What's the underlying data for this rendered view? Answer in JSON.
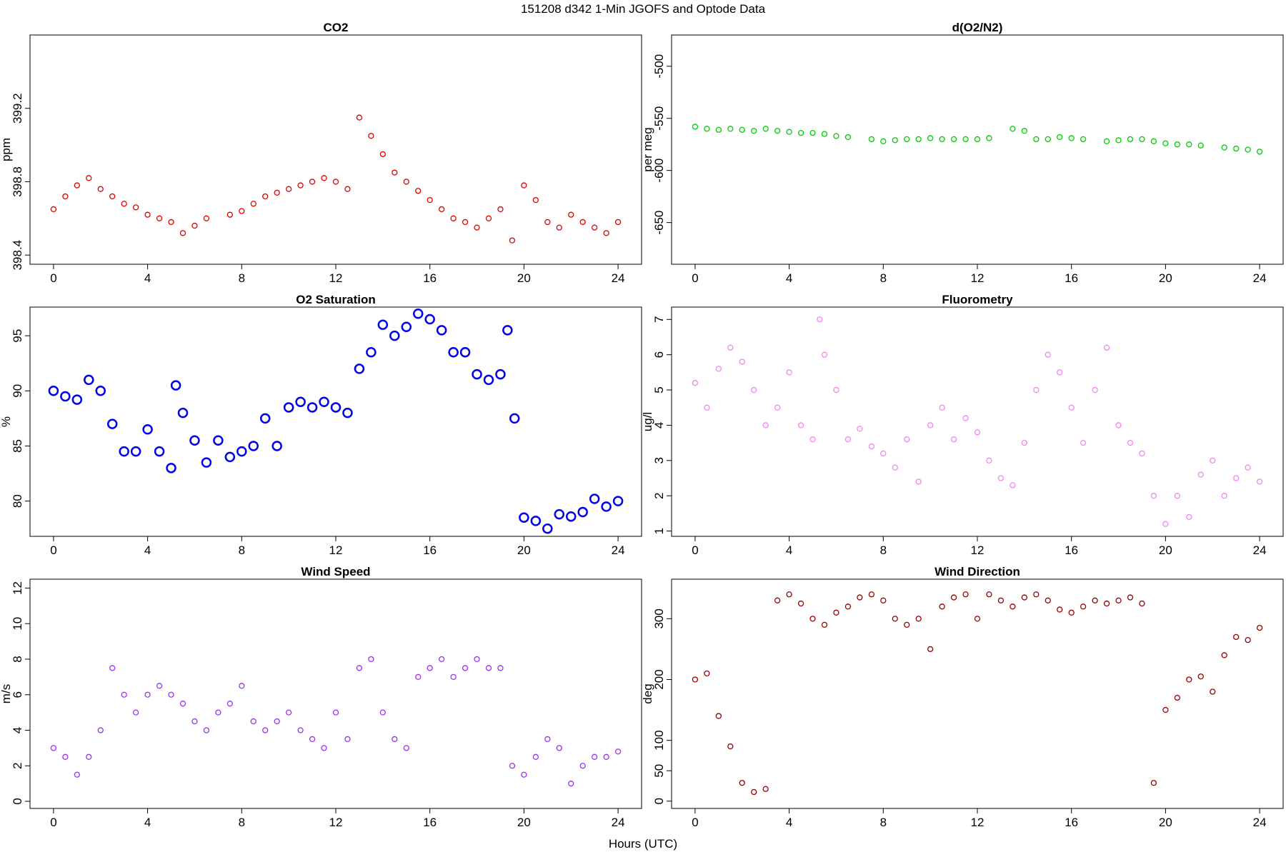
{
  "figure": {
    "title": "151208   d342   1-Min  JGOFS and Optode Data",
    "xlabel": "Hours (UTC)"
  },
  "chart_data": [
    {
      "id": "co2",
      "type": "scatter",
      "title": "CO2",
      "ylabel": "ppm",
      "color": "#dd0000",
      "xlim": [
        -1,
        25
      ],
      "ylim": [
        398.35,
        399.6
      ],
      "xticks": [
        0,
        4,
        8,
        12,
        16,
        20,
        24
      ],
      "yticks": [
        398.4,
        398.8,
        399.2
      ],
      "yticklabels": [
        "398.4",
        "398.8",
        "399.2"
      ],
      "x": [
        0,
        0.5,
        1.0,
        1.5,
        2.0,
        2.5,
        3.0,
        3.5,
        4.0,
        4.5,
        5.0,
        5.5,
        6.0,
        6.5,
        7.5,
        8.0,
        8.5,
        9.0,
        9.5,
        10.0,
        10.5,
        11.0,
        11.5,
        12.0,
        12.5,
        13.0,
        13.5,
        14.0,
        14.5,
        15.0,
        15.5,
        16.0,
        16.5,
        17.0,
        17.5,
        18.0,
        18.5,
        19.0,
        19.5,
        20.0,
        20.5,
        21.0,
        21.5,
        22.0,
        22.5,
        23.0,
        23.5,
        24.0
      ],
      "values": [
        398.65,
        398.72,
        398.78,
        398.82,
        398.76,
        398.72,
        398.68,
        398.66,
        398.62,
        398.6,
        398.58,
        398.52,
        398.56,
        398.6,
        398.62,
        398.64,
        398.68,
        398.72,
        398.74,
        398.76,
        398.78,
        398.8,
        398.82,
        398.8,
        398.76,
        399.15,
        399.05,
        398.95,
        398.85,
        398.8,
        398.75,
        398.7,
        398.65,
        398.6,
        398.58,
        398.55,
        398.6,
        398.65,
        398.48,
        398.78,
        398.7,
        398.58,
        398.55,
        398.62,
        398.58,
        398.55,
        398.52,
        398.58
      ]
    },
    {
      "id": "do2n2",
      "type": "scatter",
      "title": "d(O2/N2)",
      "ylabel": "per meg",
      "color": "#00cc00",
      "xlim": [
        -1,
        25
      ],
      "ylim": [
        -690,
        -470
      ],
      "xticks": [
        0,
        4,
        8,
        12,
        16,
        20,
        24
      ],
      "yticks": [
        -650,
        -600,
        -550,
        -500
      ],
      "yticklabels": [
        "-650",
        "-600",
        "-550",
        "-500"
      ],
      "x": [
        0,
        0.5,
        1.0,
        1.5,
        2.0,
        2.5,
        3.0,
        3.5,
        4.0,
        4.5,
        5.0,
        5.5,
        6.0,
        6.5,
        7.5,
        8.0,
        8.5,
        9.0,
        9.5,
        10.0,
        10.5,
        11.0,
        11.5,
        12.0,
        12.5,
        13.5,
        14.0,
        14.5,
        15.0,
        15.5,
        16.0,
        16.5,
        17.5,
        18.0,
        18.5,
        19.0,
        19.5,
        20.0,
        20.5,
        21.0,
        21.5,
        22.5,
        23.0,
        23.5,
        24.0
      ],
      "values": [
        -558,
        -560,
        -561,
        -560,
        -561,
        -562,
        -560,
        -562,
        -563,
        -564,
        -564,
        -565,
        -567,
        -568,
        -570,
        -572,
        -571,
        -570,
        -570,
        -569,
        -570,
        -570,
        -570,
        -570,
        -569,
        -560,
        -562,
        -570,
        -570,
        -568,
        -569,
        -570,
        -572,
        -571,
        -570,
        -570,
        -572,
        -574,
        -575,
        -575,
        -576,
        -578,
        -579,
        -580,
        -582
      ]
    },
    {
      "id": "o2sat",
      "type": "line",
      "title": "O2 Saturation",
      "ylabel": "%",
      "color": "#0000ee",
      "xlim": [
        -1,
        25
      ],
      "ylim": [
        76.8,
        97.6
      ],
      "xticks": [
        0,
        4,
        8,
        12,
        16,
        20,
        24
      ],
      "yticks": [
        80,
        85,
        90,
        95
      ],
      "yticklabels": [
        "80",
        "85",
        "90",
        "95"
      ],
      "x": [
        0,
        0.5,
        1.0,
        1.5,
        2.0,
        2.5,
        3.0,
        3.5,
        4.0,
        4.5,
        5.0,
        5.2,
        5.5,
        6.0,
        6.5,
        7.0,
        7.5,
        8.0,
        8.5,
        9.0,
        9.5,
        10.0,
        10.5,
        11.0,
        11.5,
        12.0,
        12.5,
        13.0,
        13.5,
        14.0,
        14.5,
        15.0,
        15.5,
        16.0,
        16.5,
        17.0,
        17.5,
        18.0,
        18.5,
        19.0,
        19.3,
        19.6,
        20.0,
        20.5,
        21.0,
        21.5,
        22.0,
        22.5,
        23.0,
        23.5,
        24.0
      ],
      "values": [
        90.0,
        89.5,
        89.2,
        91.0,
        90.0,
        87.0,
        84.5,
        84.5,
        86.5,
        84.5,
        83.0,
        90.5,
        88.0,
        85.5,
        83.5,
        85.5,
        84.0,
        84.5,
        85.0,
        87.5,
        85.0,
        88.5,
        89.0,
        88.5,
        89.0,
        88.5,
        88.0,
        92.0,
        93.5,
        96.0,
        95.0,
        95.8,
        97.0,
        96.5,
        95.5,
        93.5,
        93.5,
        91.5,
        91.0,
        91.5,
        95.5,
        87.5,
        78.5,
        78.2,
        77.5,
        78.8,
        78.6,
        79.0,
        80.2,
        79.5,
        80.0
      ]
    },
    {
      "id": "fluor",
      "type": "scatter",
      "title": "Fluorometry",
      "ylabel": "ug/l",
      "color": "#ee88ee",
      "xlim": [
        -1,
        25
      ],
      "ylim": [
        0.85,
        7.35
      ],
      "xticks": [
        0,
        4,
        8,
        12,
        16,
        20,
        24
      ],
      "yticks": [
        1,
        2,
        3,
        4,
        5,
        6,
        7
      ],
      "yticklabels": [
        "1",
        "2",
        "3",
        "4",
        "5",
        "6",
        "7"
      ],
      "x": [
        0,
        0.5,
        1.0,
        1.5,
        2.0,
        2.5,
        3.0,
        3.5,
        4.0,
        4.5,
        5.0,
        5.3,
        5.5,
        6.0,
        6.5,
        7.0,
        7.5,
        8.0,
        8.5,
        9.0,
        9.5,
        10.0,
        10.5,
        11.0,
        11.5,
        12.0,
        12.5,
        13.0,
        13.5,
        14.0,
        14.5,
        15.0,
        15.5,
        16.0,
        16.5,
        17.0,
        17.5,
        18.0,
        18.5,
        19.0,
        19.5,
        20.0,
        20.5,
        21.0,
        21.5,
        22.0,
        22.5,
        23.0,
        23.5,
        24.0
      ],
      "values": [
        5.2,
        4.5,
        5.6,
        6.2,
        5.8,
        5.0,
        4.0,
        4.5,
        5.5,
        4.0,
        3.6,
        7.0,
        6.0,
        5.0,
        3.6,
        3.9,
        3.4,
        3.2,
        2.8,
        3.6,
        2.4,
        4.0,
        4.5,
        3.6,
        4.2,
        3.8,
        3.0,
        2.5,
        2.3,
        3.5,
        5.0,
        6.0,
        5.5,
        4.5,
        3.5,
        5.0,
        6.2,
        4.0,
        3.5,
        3.2,
        2.0,
        1.2,
        2.0,
        1.4,
        2.6,
        3.0,
        2.0,
        2.5,
        2.8,
        2.4
      ]
    },
    {
      "id": "windspeed",
      "type": "scatter",
      "title": "Wind Speed",
      "ylabel": "m/s",
      "color": "#9933ee",
      "xlim": [
        -1,
        25
      ],
      "ylim": [
        -0.4,
        12.5
      ],
      "xticks": [
        0,
        4,
        8,
        12,
        16,
        20,
        24
      ],
      "yticks": [
        0,
        2,
        4,
        6,
        8,
        10,
        12
      ],
      "yticklabels": [
        "0",
        "2",
        "4",
        "6",
        "8",
        "10",
        "12"
      ],
      "x": [
        0,
        0.5,
        1.0,
        1.5,
        2.0,
        2.5,
        3.0,
        3.5,
        4.0,
        4.5,
        5.0,
        5.5,
        6.0,
        6.5,
        7.0,
        7.5,
        8.0,
        8.5,
        9.0,
        9.5,
        10.0,
        10.5,
        11.0,
        11.5,
        12.0,
        12.5,
        13.0,
        13.5,
        14.0,
        14.5,
        15.0,
        15.5,
        16.0,
        16.5,
        17.0,
        17.5,
        18.0,
        18.5,
        19.0,
        19.5,
        20.0,
        20.5,
        21.0,
        21.5,
        22.0,
        22.5,
        23.0,
        23.5,
        24.0
      ],
      "values": [
        3.0,
        2.5,
        1.5,
        2.5,
        4.0,
        7.5,
        6.0,
        5.0,
        6.0,
        6.5,
        6.0,
        5.5,
        4.5,
        4.0,
        5.0,
        5.5,
        6.5,
        4.5,
        4.0,
        4.5,
        5.0,
        4.0,
        3.5,
        3.0,
        5.0,
        3.5,
        7.5,
        8.0,
        5.0,
        3.5,
        3.0,
        7.0,
        7.5,
        8.0,
        7.0,
        7.5,
        8.0,
        7.5,
        7.5,
        2.0,
        1.5,
        2.5,
        3.5,
        3.0,
        1.0,
        2.0,
        2.5,
        2.5,
        2.8
      ]
    },
    {
      "id": "winddir",
      "type": "scatter",
      "title": "Wind Direction",
      "ylabel": "deg",
      "color": "#990000",
      "xlim": [
        -1,
        25
      ],
      "ylim": [
        -12,
        365
      ],
      "xticks": [
        0,
        4,
        8,
        12,
        16,
        20,
        24
      ],
      "yticks": [
        0,
        50,
        100,
        200,
        300
      ],
      "yticklabels": [
        "0",
        "50",
        "100",
        "200",
        "300"
      ],
      "x": [
        0,
        0.5,
        1.0,
        1.5,
        2.0,
        2.5,
        3.0,
        3.5,
        4.0,
        4.5,
        5.0,
        5.5,
        6.0,
        6.5,
        7.0,
        7.5,
        8.0,
        8.5,
        9.0,
        9.5,
        10.0,
        10.5,
        11.0,
        11.5,
        12.0,
        12.5,
        13.0,
        13.5,
        14.0,
        14.5,
        15.0,
        15.5,
        16.0,
        16.5,
        17.0,
        17.5,
        18.0,
        18.5,
        19.0,
        19.5,
        20.0,
        20.5,
        21.0,
        21.5,
        22.0,
        22.5,
        23.0,
        23.5,
        24.0
      ],
      "values": [
        200,
        210,
        140,
        90,
        30,
        15,
        20,
        330,
        340,
        325,
        300,
        290,
        310,
        320,
        335,
        340,
        330,
        300,
        290,
        300,
        250,
        320,
        335,
        340,
        300,
        340,
        330,
        320,
        335,
        340,
        330,
        315,
        310,
        320,
        330,
        325,
        330,
        335,
        325,
        30,
        150,
        170,
        200,
        205,
        180,
        240,
        270,
        265,
        285
      ]
    }
  ]
}
